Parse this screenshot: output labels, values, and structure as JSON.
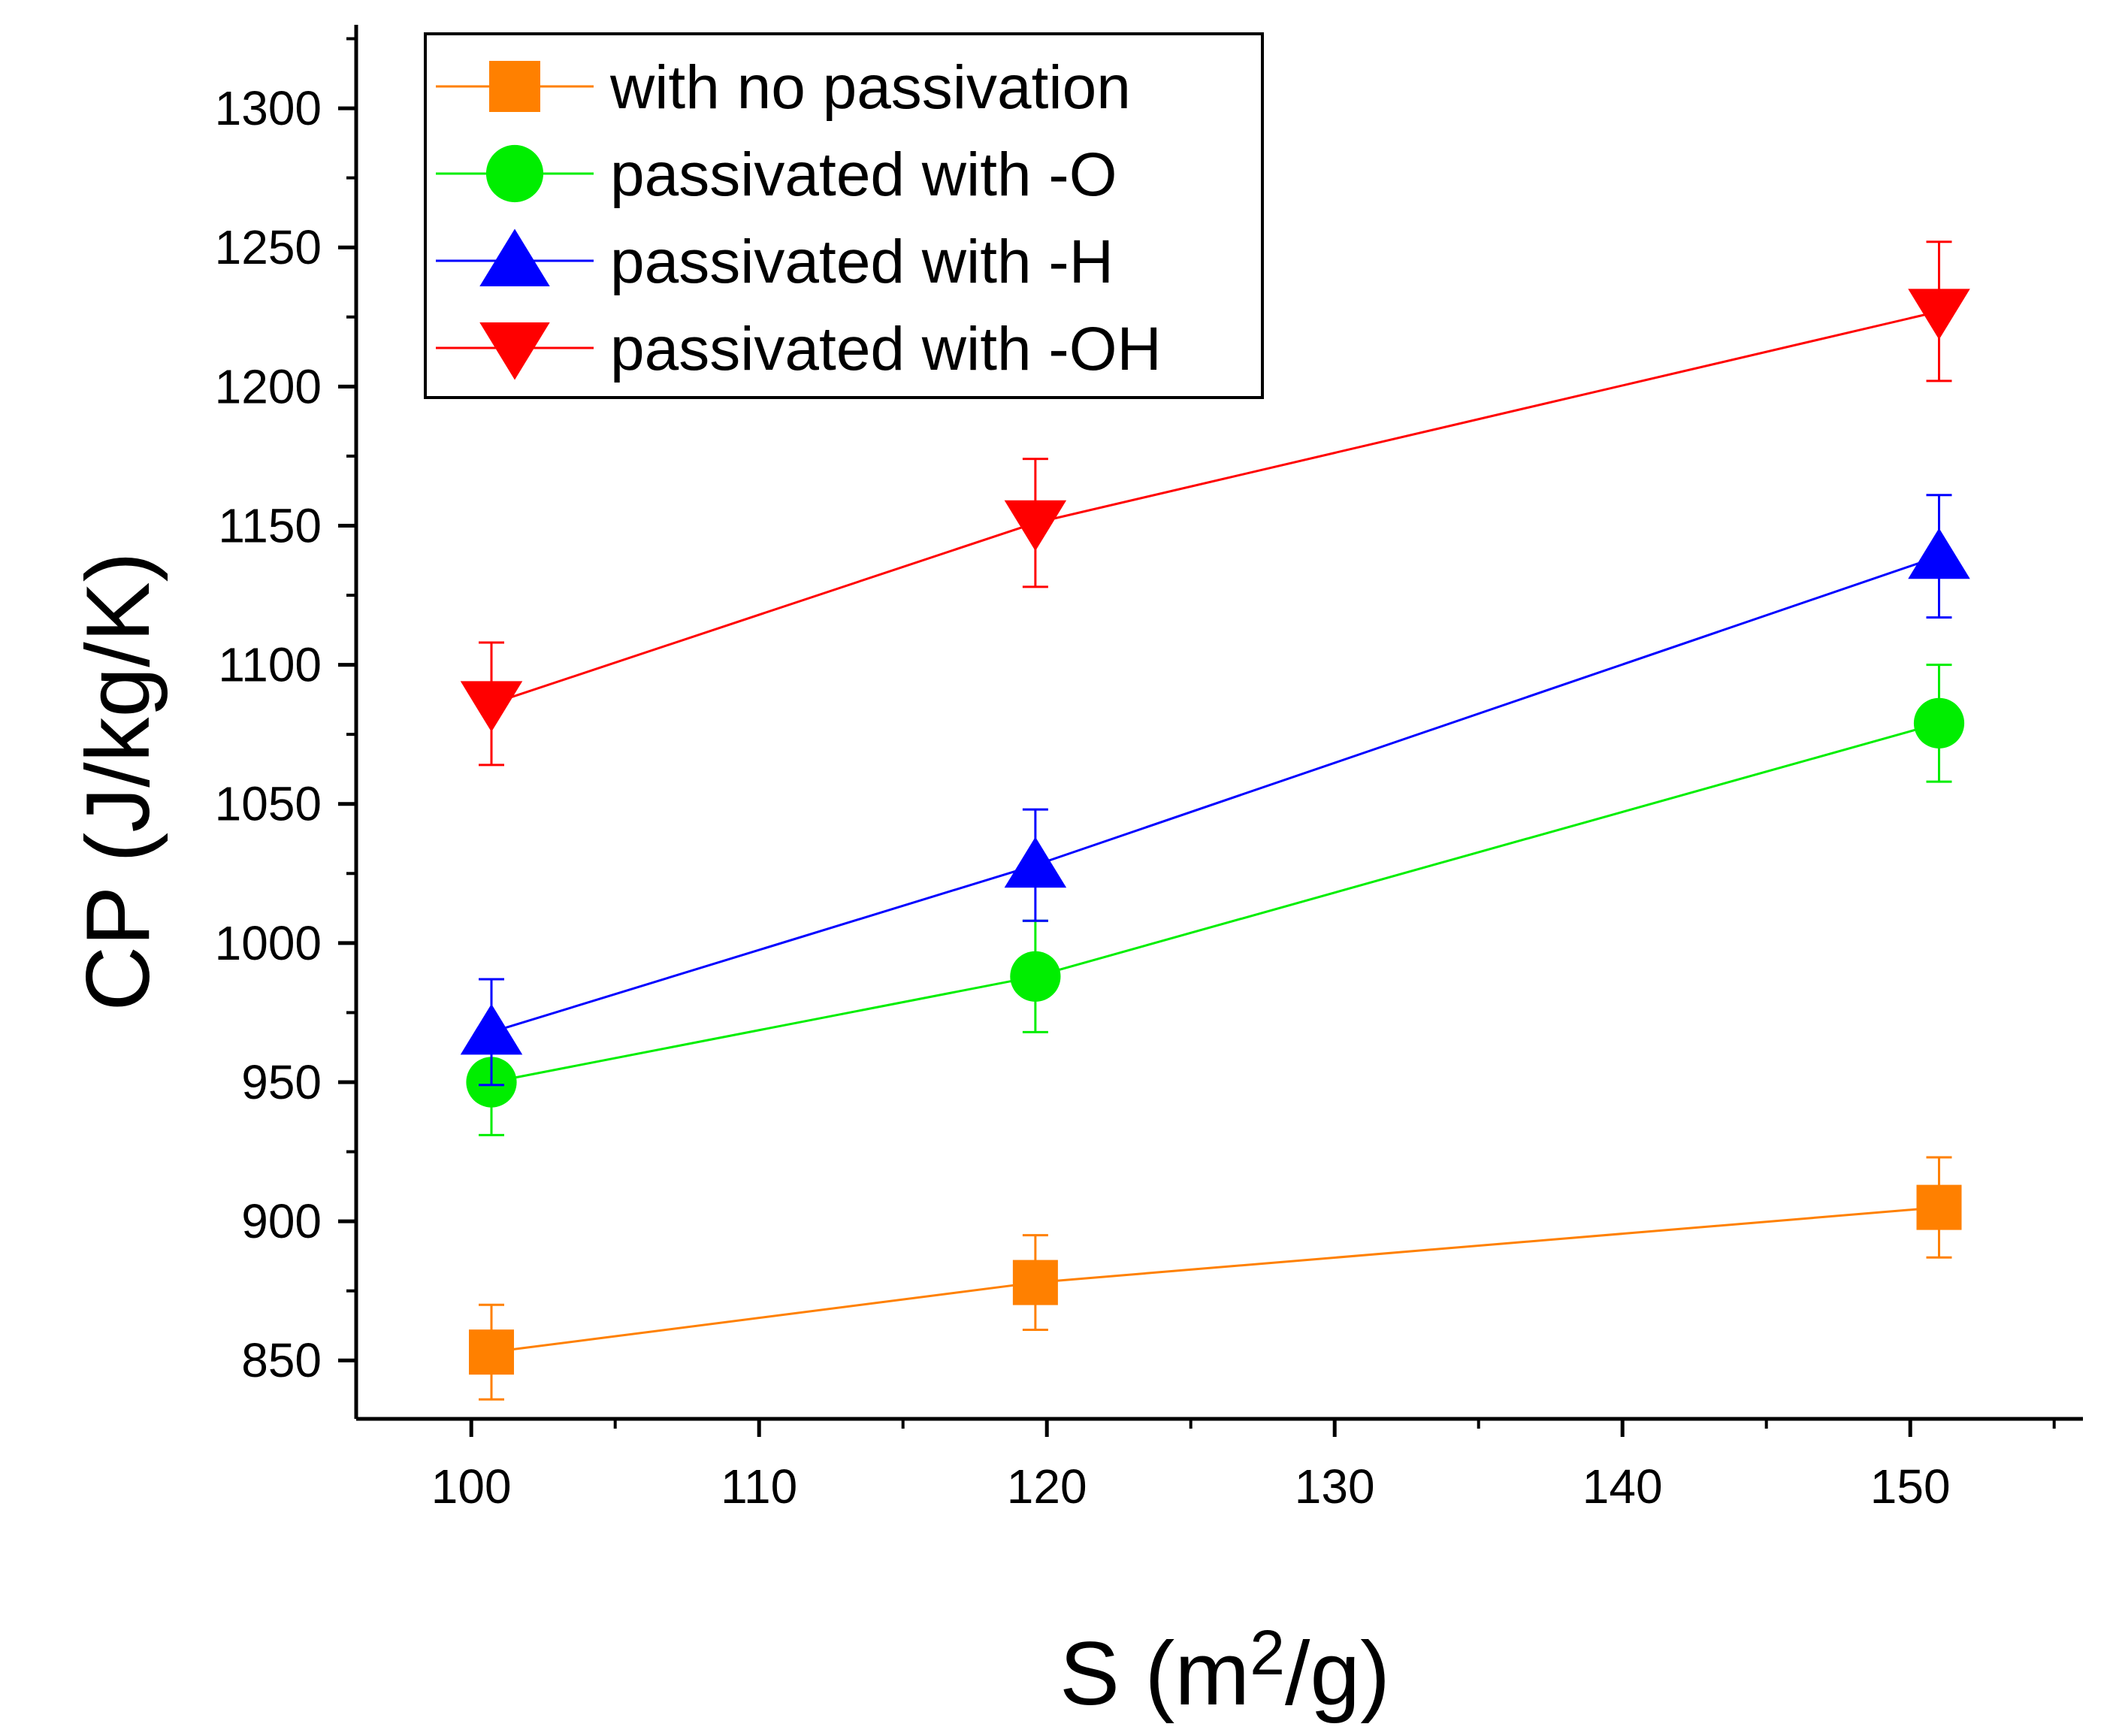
{
  "chart_data": {
    "type": "line",
    "title": "",
    "xlabel": "S (m2/g)",
    "xlabel_parts": {
      "main": "S (m",
      "sup": "2",
      "tail": "/g)"
    },
    "ylabel": "CP (J/kg/K)",
    "xlim": [
      96,
      156
    ],
    "ylim": [
      829,
      1330
    ],
    "x_ticks": [
      100,
      110,
      120,
      130,
      140,
      150
    ],
    "y_ticks": [
      850,
      900,
      950,
      1000,
      1050,
      1100,
      1150,
      1200,
      1250,
      1300
    ],
    "x_minor_step": 5,
    "y_minor_step": 25,
    "grid": false,
    "legend_position": "top-left",
    "series": [
      {
        "name": "with no passivation",
        "color": "#ff8000",
        "marker": "square",
        "x": [
          100.7,
          119.6,
          151.0
        ],
        "y": [
          853,
          878,
          905
        ],
        "err": [
          17,
          17,
          18
        ]
      },
      {
        "name": "passivated with -O",
        "color": "#00ee00",
        "marker": "circle",
        "x": [
          100.7,
          119.6,
          151.0
        ],
        "y": [
          950,
          988,
          1079
        ],
        "err": [
          19,
          20,
          21
        ]
      },
      {
        "name": "passivated with -H",
        "color": "#0000ff",
        "marker": "triangle-up",
        "x": [
          100.7,
          119.6,
          151.0
        ],
        "y": [
          968,
          1028,
          1139
        ],
        "err": [
          19,
          20,
          22
        ]
      },
      {
        "name": "passivated with -OH",
        "color": "#ff0000",
        "marker": "triangle-down",
        "x": [
          100.7,
          119.6,
          151.0
        ],
        "y": [
          1086,
          1151,
          1227
        ],
        "err": [
          22,
          23,
          25
        ]
      }
    ]
  }
}
